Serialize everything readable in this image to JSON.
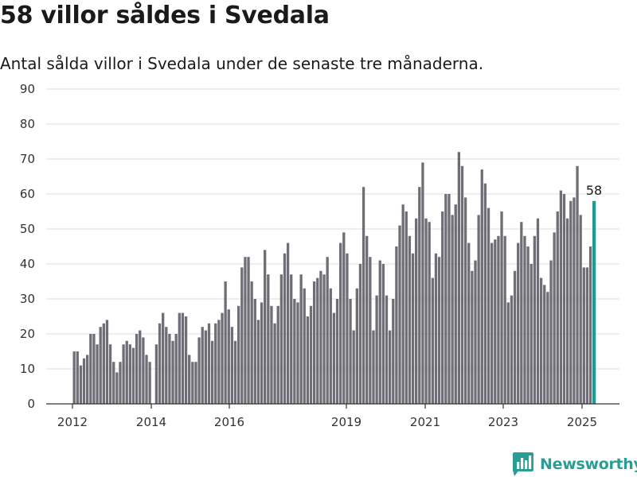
{
  "header": {
    "title": "58 villor såldes i Svedala",
    "subtitle": "Antal sålda villor i Svedala under de senaste tre månaderna."
  },
  "brand": {
    "name": "Newsworthy",
    "logo_icon": "newsworthy-chart-logo-icon",
    "color": "#2a9d94"
  },
  "colors": {
    "bar": "#6f6e76",
    "highlight": "#1a9c92",
    "grid": "#dddddd",
    "axis": "#333333"
  },
  "chart_data": {
    "type": "bar",
    "title": "58 villor såldes i Svedala",
    "subtitle": "Antal sålda villor i Svedala under de senaste tre månaderna.",
    "xlabel": "",
    "ylabel": "",
    "ylim": [
      0,
      90
    ],
    "yticks": [
      0,
      10,
      20,
      30,
      40,
      50,
      60,
      70,
      80,
      90
    ],
    "x_tick_labels": [
      "2012",
      "2014",
      "2016",
      "2019",
      "2021",
      "2023",
      "2025"
    ],
    "grid": true,
    "legend": "none",
    "values": [
      15,
      15,
      11,
      13,
      14,
      20,
      20,
      17,
      22,
      23,
      24,
      17,
      12,
      9,
      12,
      17,
      18,
      17,
      16,
      20,
      21,
      19,
      14,
      12,
      0,
      17,
      23,
      26,
      22,
      20,
      18,
      20,
      26,
      26,
      25,
      14,
      12,
      12,
      19,
      22,
      21,
      23,
      18,
      23,
      24,
      26,
      35,
      27,
      22,
      18,
      28,
      39,
      42,
      42,
      35,
      30,
      24,
      29,
      44,
      37,
      28,
      23,
      28,
      37,
      43,
      46,
      37,
      30,
      29,
      37,
      33,
      25,
      28,
      35,
      36,
      38,
      37,
      42,
      33,
      26,
      30,
      46,
      49,
      43,
      30,
      21,
      33,
      40,
      62,
      48,
      42,
      21,
      31,
      41,
      40,
      31,
      21,
      30,
      45,
      51,
      57,
      55,
      48,
      43,
      53,
      62,
      69,
      53,
      52,
      36,
      43,
      42,
      55,
      60,
      60,
      54,
      57,
      72,
      68,
      59,
      46,
      38,
      41,
      54,
      67,
      63,
      56,
      46,
      47,
      48,
      55,
      48,
      29,
      31,
      38,
      46,
      52,
      48,
      45,
      40,
      48,
      53,
      36,
      34,
      32,
      41,
      49,
      55,
      61,
      60,
      53,
      58,
      59,
      68,
      54,
      39,
      39,
      45,
      58
    ],
    "highlight": {
      "value": 58,
      "label": "58"
    }
  }
}
